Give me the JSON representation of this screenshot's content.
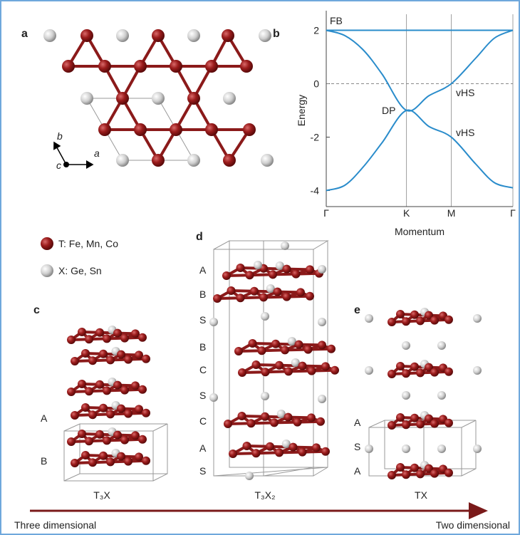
{
  "panel_labels": [
    "a",
    "b",
    "c",
    "d",
    "e"
  ],
  "lattice_axes": [
    "a",
    "b",
    "c"
  ],
  "legend": [
    "T: Fe, Mn, Co",
    "X: Ge, Sn"
  ],
  "chart_data": {
    "type": "line",
    "xlabel": "Momentum",
    "ylabel": "Energy",
    "x": [
      0,
      0.1,
      0.2,
      0.3,
      0.43,
      0.55,
      0.67,
      0.8,
      0.9,
      1
    ],
    "series": [
      {
        "color": "#2a8ccb",
        "values": [
          2,
          2,
          2,
          2,
          2,
          2,
          2,
          2,
          2,
          2
        ]
      },
      {
        "color": "#2a8ccb",
        "values": [
          2,
          1.8,
          1.25,
          0.35,
          -1,
          -0.45,
          0,
          0.95,
          1.7,
          2
        ]
      },
      {
        "color": "#2a8ccb",
        "values": [
          -4,
          -3.8,
          -3.1,
          -2.2,
          -1,
          -1.6,
          -2,
          -3,
          -3.7,
          -3.9
        ]
      }
    ],
    "xlim": [
      0,
      1
    ],
    "ylim": [
      -4.6,
      2.6
    ],
    "xticks": [
      {
        "value": 0,
        "label": "Γ"
      },
      {
        "value": 0.43,
        "label": "K"
      },
      {
        "value": 0.67,
        "label": "M"
      },
      {
        "value": 1,
        "label": "Γ"
      }
    ],
    "yticks": [
      -4,
      -2,
      0,
      2
    ],
    "hline": 0,
    "annotations": [
      "FB",
      "DP",
      "vHS",
      "vHS"
    ]
  },
  "structures": {
    "c": {
      "formula": "T₃X",
      "stacking": [
        "A",
        "B"
      ]
    },
    "d": {
      "formula": "T₃X₂",
      "stacking": [
        "A",
        "B",
        "S",
        "B",
        "C",
        "S",
        "C",
        "A",
        "S"
      ]
    },
    "e": {
      "formula": "TX",
      "stacking": [
        "A",
        "S",
        "A"
      ]
    }
  },
  "arrow": {
    "left": "Three dimensional",
    "right": "Two dimensional"
  }
}
